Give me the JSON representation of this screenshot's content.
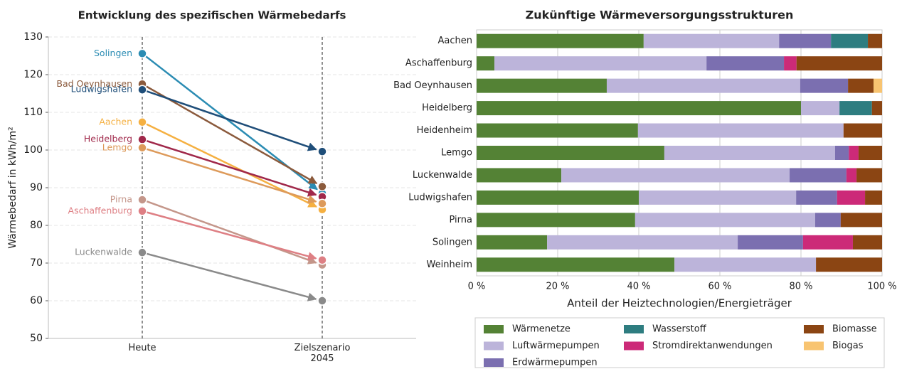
{
  "chart_data": [
    {
      "type": "slope",
      "title": "Entwicklung des spezifischen Wärmebedarfs",
      "ylabel": "Wärmebedarf in kWh/m²",
      "categories": [
        "Heute",
        "Zielszenario 2045"
      ],
      "ylim": [
        50,
        130
      ],
      "yticks": [
        50,
        60,
        70,
        80,
        90,
        100,
        110,
        120,
        130
      ],
      "grid": true,
      "series": [
        {
          "name": "Solingen",
          "color": "#2b8cb3",
          "values": [
            125.6,
            88.5
          ]
        },
        {
          "name": "Bad Oeynhausen",
          "color": "#8b5a3c",
          "values": [
            117.5,
            90.3
          ]
        },
        {
          "name": "Ludwigshafen",
          "color": "#1f4e79",
          "values": [
            116,
            99.6
          ]
        },
        {
          "name": "Aachen",
          "color": "#f5b041",
          "values": [
            107.4,
            84.2
          ]
        },
        {
          "name": "Heidelberg",
          "color": "#a0284a",
          "values": [
            102.8,
            87.6
          ]
        },
        {
          "name": "Lemgo",
          "color": "#dd9a5a",
          "values": [
            100.6,
            85.8
          ]
        },
        {
          "name": "Pirna",
          "color": "#c4968a",
          "values": [
            86.8,
            69.5
          ]
        },
        {
          "name": "Aschaffenburg",
          "color": "#de7f84",
          "values": [
            83.8,
            70.8
          ]
        },
        {
          "name": "Luckenwalde",
          "color": "#8a8a8a",
          "values": [
            72.8,
            60
          ]
        }
      ]
    },
    {
      "type": "stacked-barh",
      "title": "Zukünftige Wärmeversorgungsstrukturen",
      "xlabel": "Anteil der Heiztechnologien/Energieträger",
      "categories": [
        "Aachen",
        "Aschaffenburg",
        "Bad Oeynhausen",
        "Heidelberg",
        "Heidenheim",
        "Lemgo",
        "Luckenwalde",
        "Ludwigshafen",
        "Pirna",
        "Solingen",
        "Weinheim"
      ],
      "xlim": [
        0,
        100
      ],
      "xticks": [
        {
          "value": 0,
          "label": "0 %"
        },
        {
          "value": 20,
          "label": "20 %"
        },
        {
          "value": 40,
          "label": "40 %"
        },
        {
          "value": 60,
          "label": "60 %"
        },
        {
          "value": 80,
          "label": "80 %"
        },
        {
          "value": 100,
          "label": "100 %"
        }
      ],
      "grid": true,
      "series": [
        {
          "name": "Wärmenetze",
          "color": "#548235",
          "values": [
            41.2,
            4.4,
            32.1,
            80.0,
            39.8,
            46.3,
            20.9,
            40.0,
            39.1,
            17.4,
            48.8
          ]
        },
        {
          "name": "Luftwärmepumpen",
          "color": "#bcb4da",
          "values": [
            33.4,
            52.3,
            47.7,
            9.5,
            50.7,
            42.1,
            56.3,
            38.8,
            44.4,
            47.0,
            34.9
          ]
        },
        {
          "name": "Erdwärmepumpen",
          "color": "#7b6fb0",
          "values": [
            12.8,
            19.1,
            11.8,
            0,
            0,
            3.4,
            14.0,
            10.1,
            6.3,
            16.1,
            0
          ]
        },
        {
          "name": "Wasserstoff",
          "color": "#2e7d80",
          "values": [
            9.1,
            0,
            0,
            8.0,
            0,
            0,
            0,
            0,
            0,
            0,
            0
          ]
        },
        {
          "name": "Stromdirektanwendungen",
          "color": "#cc2a78",
          "values": [
            0,
            3.1,
            0,
            0,
            0,
            2.4,
            2.5,
            6.9,
            0,
            12.3,
            0
          ]
        },
        {
          "name": "Biomasse",
          "color": "#8b4513",
          "values": [
            3.5,
            21.1,
            6.3,
            2.5,
            9.5,
            5.8,
            6.3,
            4.2,
            10.2,
            7.2,
            16.3
          ]
        },
        {
          "name": "Biogas",
          "color": "#f8c471",
          "values": [
            0,
            0,
            2.1,
            0,
            0,
            0,
            0,
            0,
            0,
            0,
            0
          ]
        }
      ]
    }
  ]
}
